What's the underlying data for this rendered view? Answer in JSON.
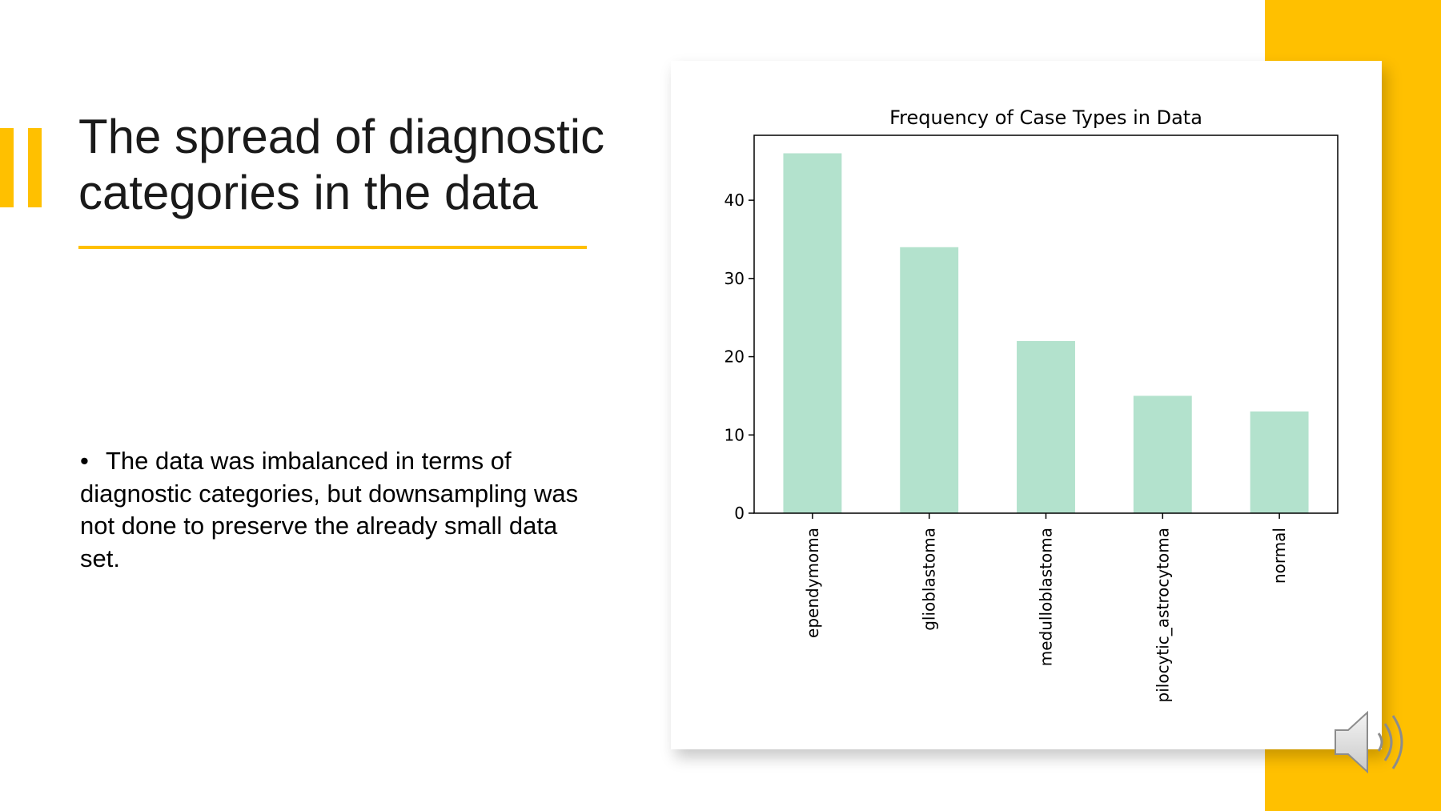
{
  "slide": {
    "title": "The spread of diagnostic categories in the data",
    "bullet": "The data was imbalanced in terms of diagnostic categories, but downsampling was not done to preserve the already small data set.",
    "accent_color": "#FFC000",
    "speaker_icon": "speaker-icon"
  },
  "chart_data": {
    "type": "bar",
    "title": "Frequency of Case Types in Data",
    "xlabel": "",
    "ylabel": "",
    "categories": [
      "ependymoma",
      "glioblastoma",
      "medulloblastoma",
      "pilocytic_astrocytoma",
      "normal"
    ],
    "values": [
      46,
      34,
      22,
      15,
      13
    ],
    "ylim": [
      0,
      48.3
    ],
    "yticks": [
      0,
      10,
      20,
      30,
      40
    ],
    "bar_color": "#B3E2CD",
    "grid": false,
    "legend": "none"
  }
}
